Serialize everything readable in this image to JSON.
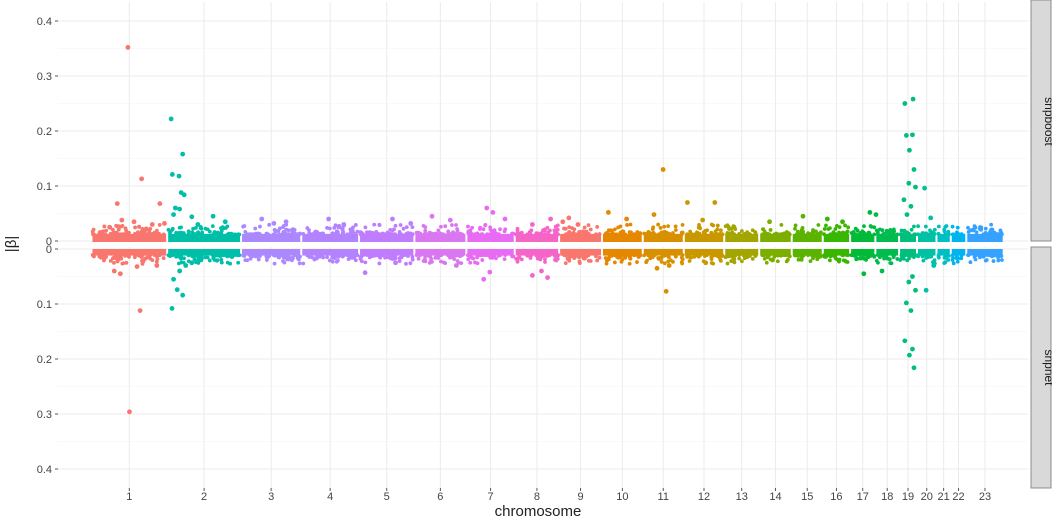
{
  "chart_data": {
    "type": "scatter",
    "subtype": "mirrored-manhattan",
    "xlabel": "chromosome",
    "ylabel": "|β|",
    "panels": [
      {
        "name": "snpboost",
        "orientation": "up",
        "ylim": [
          0,
          0.41
        ],
        "yticks": [
          0,
          0.1,
          0.2,
          0.3,
          0.4
        ],
        "ytick_labels": [
          "0",
          "0.1",
          "0.2",
          "0.3",
          "0.4"
        ]
      },
      {
        "name": "snpnet",
        "orientation": "down",
        "ylim": [
          0,
          0.41
        ],
        "yticks": [
          0,
          0.1,
          0.2,
          0.3,
          0.4
        ],
        "ytick_labels": [
          "0",
          "0.1",
          "0.2",
          "0.3",
          "0.4"
        ]
      }
    ],
    "x_axis": {
      "range": [
        -110,
        3080
      ],
      "chromosomes": [
        {
          "label": "1",
          "start": 0,
          "end": 249,
          "color": "#F8766D"
        },
        {
          "label": "2",
          "start": 249,
          "end": 492,
          "color": "#00BFA8"
        },
        {
          "label": "3",
          "start": 492,
          "end": 690,
          "color": "#AC88FF"
        },
        {
          "label": "4",
          "start": 690,
          "end": 880,
          "color": "#B383FF"
        },
        {
          "label": "5",
          "start": 880,
          "end": 1062,
          "color": "#C07CFF"
        },
        {
          "label": "6",
          "start": 1062,
          "end": 1233,
          "color": "#D977F0"
        },
        {
          "label": "7",
          "start": 1233,
          "end": 1392,
          "color": "#E76BF3"
        },
        {
          "label": "8",
          "start": 1392,
          "end": 1538,
          "color": "#F565C8"
        },
        {
          "label": "9",
          "start": 1538,
          "end": 1679,
          "color": "#F8766D"
        },
        {
          "label": "10",
          "start": 1679,
          "end": 1813,
          "color": "#E58700"
        },
        {
          "label": "11",
          "start": 1813,
          "end": 1948,
          "color": "#D89000"
        },
        {
          "label": "12",
          "start": 1948,
          "end": 2081,
          "color": "#C99800"
        },
        {
          "label": "13",
          "start": 2081,
          "end": 2196,
          "color": "#A3A500"
        },
        {
          "label": "14",
          "start": 2196,
          "end": 2303,
          "color": "#7CAE00"
        },
        {
          "label": "15",
          "start": 2303,
          "end": 2405,
          "color": "#5BB300"
        },
        {
          "label": "16",
          "start": 2405,
          "end": 2495,
          "color": "#39B600"
        },
        {
          "label": "17",
          "start": 2495,
          "end": 2578,
          "color": "#00BA38"
        },
        {
          "label": "18",
          "start": 2578,
          "end": 2656,
          "color": "#00BB4E"
        },
        {
          "label": "19",
          "start": 2656,
          "end": 2715,
          "color": "#00BF7D"
        },
        {
          "label": "20",
          "start": 2715,
          "end": 2779,
          "color": "#00C1A3"
        },
        {
          "label": "21",
          "start": 2779,
          "end": 2826,
          "color": "#00BFC4"
        },
        {
          "label": "22",
          "start": 2826,
          "end": 2877,
          "color": "#00B4F0"
        },
        {
          "label": "23",
          "start": 2877,
          "end": 3000,
          "color": "#35A2FF"
        }
      ]
    },
    "points": {
      "snpboost": [
        [
          120,
          0.352
        ],
        [
          165,
          0.113
        ],
        [
          85,
          0.068
        ],
        [
          225,
          0.068
        ],
        [
          100,
          0.038
        ],
        [
          140,
          0.035
        ],
        [
          200,
          0.03
        ],
        [
          240,
          0.032
        ],
        [
          60,
          0.025
        ],
        [
          180,
          0.022
        ],
        [
          262,
          0.222
        ],
        [
          300,
          0.158
        ],
        [
          266,
          0.121
        ],
        [
          288,
          0.118
        ],
        [
          295,
          0.088
        ],
        [
          305,
          0.084
        ],
        [
          276,
          0.06
        ],
        [
          290,
          0.058
        ],
        [
          270,
          0.048
        ],
        [
          330,
          0.044
        ],
        [
          400,
          0.045
        ],
        [
          350,
          0.03
        ],
        [
          440,
          0.035
        ],
        [
          560,
          0.04
        ],
        [
          600,
          0.032
        ],
        [
          640,
          0.035
        ],
        [
          780,
          0.04
        ],
        [
          830,
          0.03
        ],
        [
          990,
          0.04
        ],
        [
          1050,
          0.032
        ],
        [
          1120,
          0.045
        ],
        [
          1180,
          0.038
        ],
        [
          1300,
          0.06
        ],
        [
          1320,
          0.052
        ],
        [
          1360,
          0.04
        ],
        [
          1450,
          0.03
        ],
        [
          1510,
          0.04
        ],
        [
          1550,
          0.035
        ],
        [
          1570,
          0.042
        ],
        [
          1600,
          0.03
        ],
        [
          1700,
          0.052
        ],
        [
          1760,
          0.04
        ],
        [
          1850,
          0.048
        ],
        [
          1880,
          0.13
        ],
        [
          1960,
          0.07
        ],
        [
          2010,
          0.038
        ],
        [
          2050,
          0.07
        ],
        [
          2230,
          0.035
        ],
        [
          2340,
          0.045
        ],
        [
          2420,
          0.04
        ],
        [
          2470,
          0.035
        ],
        [
          2560,
          0.052
        ],
        [
          2580,
          0.048
        ],
        [
          2675,
          0.25
        ],
        [
          2702,
          0.258
        ],
        [
          2680,
          0.192
        ],
        [
          2700,
          0.193
        ],
        [
          2690,
          0.165
        ],
        [
          2705,
          0.13
        ],
        [
          2688,
          0.105
        ],
        [
          2710,
          0.098
        ],
        [
          2672,
          0.075
        ],
        [
          2695,
          0.063
        ],
        [
          2682,
          0.048
        ],
        [
          2740,
          0.096
        ],
        [
          2760,
          0.042
        ],
        [
          2900,
          0.02
        ],
        [
          2960,
          0.02
        ]
      ],
      "snpnet": [
        [
          125,
          0.296
        ],
        [
          160,
          0.112
        ],
        [
          75,
          0.04
        ],
        [
          95,
          0.045
        ],
        [
          150,
          0.032
        ],
        [
          215,
          0.03
        ],
        [
          265,
          0.108
        ],
        [
          300,
          0.084
        ],
        [
          282,
          0.074
        ],
        [
          270,
          0.055
        ],
        [
          290,
          0.04
        ],
        [
          310,
          0.03
        ],
        [
          330,
          0.025
        ],
        [
          360,
          0.02
        ],
        [
          900,
          0.043
        ],
        [
          1000,
          0.025
        ],
        [
          1200,
          0.03
        ],
        [
          1290,
          0.055
        ],
        [
          1310,
          0.042
        ],
        [
          1450,
          0.048
        ],
        [
          1480,
          0.04
        ],
        [
          1500,
          0.052
        ],
        [
          1890,
          0.077
        ],
        [
          1900,
          0.03
        ],
        [
          1860,
          0.035
        ],
        [
          2020,
          0.025
        ],
        [
          2240,
          0.02
        ],
        [
          2540,
          0.045
        ],
        [
          2600,
          0.04
        ],
        [
          2675,
          0.167
        ],
        [
          2700,
          0.182
        ],
        [
          2690,
          0.193
        ],
        [
          2705,
          0.216
        ],
        [
          2680,
          0.098
        ],
        [
          2695,
          0.112
        ],
        [
          2710,
          0.075
        ],
        [
          2688,
          0.06
        ],
        [
          2700,
          0.05
        ],
        [
          2745,
          0.075
        ],
        [
          2770,
          0.03
        ]
      ]
    }
  }
}
